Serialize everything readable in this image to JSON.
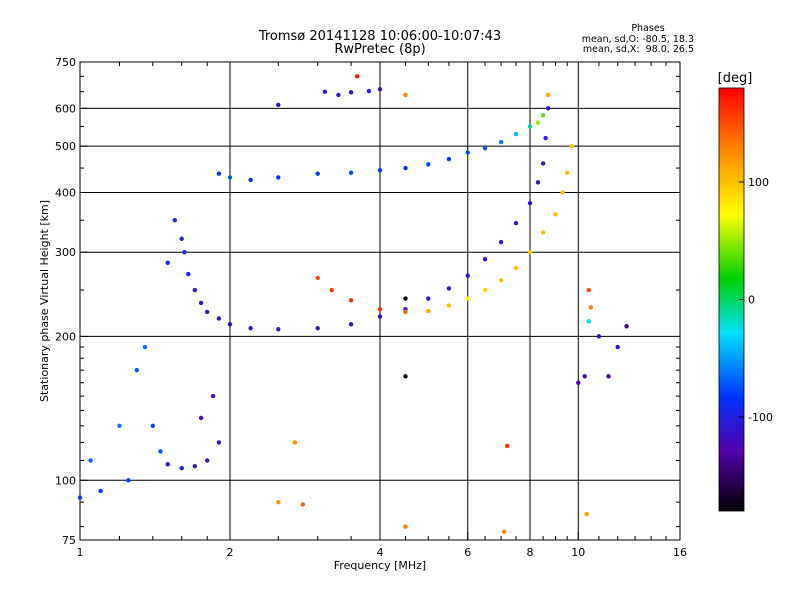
{
  "chart_data": {
    "type": "scatter",
    "title": "Tromsø 20141128 10:06:00-10:07:43",
    "subtitle": "RwPretec (8p)",
    "stats": {
      "heading": "Phases",
      "line_o": "mean, sd,O: -80.5, 18.3",
      "line_x": "mean, sd,X:  98.0, 26.5"
    },
    "xlabel": "Frequency [MHz]",
    "ylabel": "Stationary phase Virtual Height [km]",
    "x_scale": "log",
    "y_scale": "log",
    "xlim": [
      1,
      16
    ],
    "ylim": [
      75,
      750
    ],
    "x_ticks": [
      {
        "value": 1,
        "label": "1"
      },
      {
        "value": 2,
        "label": "2"
      },
      {
        "value": 4,
        "label": "4"
      },
      {
        "value": 6,
        "label": "6"
      },
      {
        "value": 8,
        "label": "8"
      },
      {
        "value": 10,
        "label": "10"
      },
      {
        "value": 16,
        "label": "16"
      }
    ],
    "y_ticks": [
      {
        "value": 75,
        "label": "75"
      },
      {
        "value": 100,
        "label": "100"
      },
      {
        "value": 200,
        "label": "200"
      },
      {
        "value": 300,
        "label": "300"
      },
      {
        "value": 400,
        "label": "400"
      },
      {
        "value": 500,
        "label": "500"
      },
      {
        "value": 600,
        "label": "600"
      },
      {
        "value": 750,
        "label": "750"
      }
    ],
    "x_minor_ticks": [
      1.2,
      1.4,
      1.6,
      1.8,
      2.5,
      3,
      3.5,
      4.5,
      5,
      5.5,
      6.5,
      7,
      7.5,
      8.5,
      9,
      9.5,
      11,
      12,
      13,
      14,
      15
    ],
    "y_minor_ticks": [
      80,
      90,
      110,
      120,
      130,
      140,
      150,
      160,
      170,
      180,
      190,
      250,
      350,
      450,
      550,
      650,
      700
    ],
    "x_grid": [
      2,
      4,
      6,
      8,
      10
    ],
    "y_grid": [
      100,
      200,
      300,
      400,
      500,
      600
    ],
    "grid": true,
    "colorbar": {
      "unit": "[deg]",
      "min": -180,
      "max": 180,
      "ticks": [
        {
          "value": 100,
          "label": "100"
        },
        {
          "value": 0,
          "label": "0"
        },
        {
          "value": -100,
          "label": "-100"
        }
      ]
    },
    "series": [
      {
        "points": [
          [
            1.5,
            285,
            -100
          ],
          [
            1.55,
            350,
            -95
          ],
          [
            1.6,
            320,
            -100
          ],
          [
            1.62,
            300,
            -95
          ],
          [
            1.65,
            270,
            -100
          ],
          [
            1.7,
            250,
            -105
          ],
          [
            1.75,
            235,
            -110
          ],
          [
            1.8,
            225,
            -110
          ],
          [
            1.9,
            218,
            -110
          ],
          [
            2.0,
            212,
            -115
          ],
          [
            2.2,
            208,
            -115
          ],
          [
            2.5,
            207,
            -115
          ],
          [
            3.0,
            208,
            -115
          ],
          [
            3.5,
            212,
            -115
          ],
          [
            4.0,
            220,
            -115
          ],
          [
            4.5,
            228,
            -105
          ],
          [
            5.0,
            240,
            -110
          ],
          [
            5.5,
            252,
            -115
          ],
          [
            6.0,
            268,
            -115
          ],
          [
            6.5,
            290,
            -110
          ],
          [
            7.0,
            315,
            -115
          ],
          [
            7.5,
            345,
            -115
          ],
          [
            8.0,
            380,
            -110
          ],
          [
            8.3,
            420,
            -115
          ],
          [
            8.5,
            460,
            -110
          ],
          [
            8.6,
            520,
            -105
          ],
          [
            8.7,
            600,
            -115
          ]
        ]
      },
      {
        "points": [
          [
            3.0,
            265,
            150
          ],
          [
            3.2,
            250,
            155
          ],
          [
            3.5,
            238,
            160
          ],
          [
            4.0,
            228,
            160
          ],
          [
            4.5,
            225,
            140
          ],
          [
            5.0,
            226,
            110
          ],
          [
            5.5,
            232,
            100
          ],
          [
            6.0,
            240,
            80
          ],
          [
            6.5,
            250,
            90
          ],
          [
            7.0,
            262,
            100
          ],
          [
            7.5,
            278,
            100
          ],
          [
            8.0,
            300,
            95
          ],
          [
            8.5,
            330,
            100
          ],
          [
            9.0,
            360,
            100
          ],
          [
            9.3,
            400,
            100
          ],
          [
            9.5,
            440,
            100
          ],
          [
            9.7,
            500,
            100
          ]
        ]
      },
      {
        "points": [
          [
            1.9,
            438,
            -85
          ],
          [
            2.0,
            430,
            -70
          ],
          [
            2.2,
            425,
            -90
          ],
          [
            2.5,
            430,
            -85
          ],
          [
            3.0,
            438,
            -80
          ],
          [
            3.5,
            440,
            -75
          ],
          [
            4.0,
            445,
            -80
          ],
          [
            4.5,
            450,
            -85
          ],
          [
            5.0,
            458,
            -75
          ],
          [
            5.5,
            470,
            -80
          ],
          [
            6.0,
            485,
            -75
          ],
          [
            6.5,
            495,
            -70
          ],
          [
            7.0,
            510,
            -60
          ],
          [
            7.5,
            530,
            -40
          ],
          [
            8.0,
            550,
            -10
          ],
          [
            8.3,
            560,
            50
          ],
          [
            8.5,
            580,
            40
          ],
          [
            8.7,
            640,
            110
          ]
        ]
      },
      {
        "points": [
          [
            1.05,
            110,
            -70
          ],
          [
            1.1,
            95,
            -80
          ],
          [
            1.2,
            130,
            -60
          ],
          [
            1.3,
            170,
            -70
          ],
          [
            1.35,
            190,
            -65
          ],
          [
            1.4,
            130,
            -75
          ],
          [
            1.45,
            115,
            -70
          ],
          [
            1.5,
            108,
            -110
          ],
          [
            1.6,
            106,
            -100
          ],
          [
            1.7,
            107,
            -110
          ],
          [
            1.8,
            110,
            -120
          ],
          [
            1.85,
            150,
            -125
          ],
          [
            1.9,
            120,
            -115
          ],
          [
            1.75,
            135,
            -120
          ],
          [
            1.25,
            100,
            -80
          ],
          [
            1.0,
            92,
            -80
          ]
        ]
      },
      {
        "points": [
          [
            3.1,
            650,
            -110
          ],
          [
            3.3,
            640,
            -105
          ],
          [
            3.5,
            648,
            -110
          ],
          [
            3.8,
            652,
            -100
          ],
          [
            4.0,
            658,
            -110
          ],
          [
            2.5,
            610,
            -115
          ],
          [
            3.6,
            700,
            170
          ],
          [
            4.5,
            640,
            130
          ]
        ]
      },
      {
        "points": [
          [
            10.5,
            250,
            150
          ],
          [
            10.6,
            230,
            130
          ],
          [
            10.5,
            215,
            -30
          ],
          [
            11.0,
            200,
            -115
          ],
          [
            12.0,
            190,
            -110
          ],
          [
            12.5,
            210,
            -150
          ],
          [
            10.0,
            160,
            -130
          ],
          [
            10.3,
            165,
            -120
          ],
          [
            11.5,
            165,
            -135
          ],
          [
            7.2,
            118,
            160
          ],
          [
            7.1,
            78,
            130
          ],
          [
            4.5,
            80,
            130
          ],
          [
            2.5,
            90,
            120
          ],
          [
            2.8,
            89,
            140
          ],
          [
            2.7,
            120,
            120
          ],
          [
            10.4,
            85,
            110
          ],
          [
            4.5,
            165,
            -170
          ],
          [
            4.5,
            240,
            -180
          ]
        ]
      }
    ]
  }
}
